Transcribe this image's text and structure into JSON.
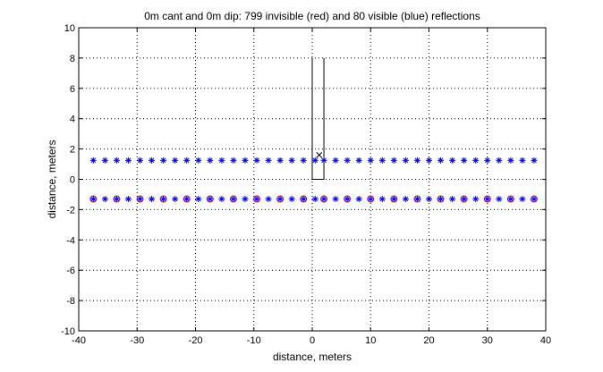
{
  "chart_data": {
    "type": "scatter",
    "title": "0m cant and 0m dip: 799 invisible (red) and 80 visible (blue) reflections",
    "xlabel": "distance, meters",
    "ylabel": "distance, meters",
    "xlim": [
      -40,
      40
    ],
    "ylim": [
      -10,
      10
    ],
    "xticks": [
      -40,
      -30,
      -20,
      -10,
      0,
      10,
      20,
      30,
      40
    ],
    "yticks": [
      -10,
      -8,
      -6,
      -4,
      -2,
      0,
      2,
      4,
      6,
      8,
      10
    ],
    "grid": true,
    "grid_style": "dotted",
    "series": [
      {
        "name": "invisible (red)",
        "marker": "o",
        "color": "#ff0000",
        "x": [
          -37.5,
          -33.5,
          -29.5,
          -25.5,
          -21.5,
          -17.5,
          -13.5,
          -9.5,
          -5.5,
          -1.5,
          2.0,
          6.0,
          10.0,
          14.0,
          18.0,
          22.0,
          26.0,
          30.0,
          34.0,
          38.0
        ],
        "y": [
          -1.3,
          -1.3,
          -1.3,
          -1.3,
          -1.3,
          -1.3,
          -1.3,
          -1.3,
          -1.3,
          -1.3,
          -1.3,
          -1.3,
          -1.3,
          -1.3,
          -1.3,
          -1.3,
          -1.3,
          -1.3,
          -1.3,
          -1.3
        ]
      },
      {
        "name": "visible (blue)",
        "marker": "*",
        "color": "#0000ff",
        "x": [
          -37.5,
          -35.5,
          -33.5,
          -31.5,
          -29.5,
          -27.5,
          -25.5,
          -23.5,
          -21.5,
          -19.5,
          -17.5,
          -15.5,
          -13.5,
          -11.5,
          -9.5,
          -7.5,
          -5.5,
          -3.5,
          -1.5,
          0.5,
          2.0,
          4.0,
          6.0,
          8.0,
          10.0,
          12.0,
          14.0,
          16.0,
          18.0,
          20.0,
          22.0,
          24.0,
          26.0,
          28.0,
          30.0,
          32.0,
          34.0,
          36.0,
          38.0,
          -37.5,
          -35.5,
          -33.5,
          -31.5,
          -29.5,
          -27.5,
          -25.5,
          -23.5,
          -21.5,
          -19.5,
          -17.5,
          -15.5,
          -13.5,
          -11.5,
          -9.5,
          -7.5,
          -5.5,
          -3.5,
          -1.5,
          0.5,
          2.0,
          4.0,
          6.0,
          8.0,
          10.0,
          12.0,
          14.0,
          16.0,
          18.0,
          20.0,
          22.0,
          24.0,
          26.0,
          28.0,
          30.0,
          32.0,
          34.0,
          36.0,
          38.0
        ],
        "y": [
          1.25,
          1.25,
          1.25,
          1.25,
          1.25,
          1.25,
          1.25,
          1.25,
          1.25,
          1.25,
          1.25,
          1.25,
          1.25,
          1.25,
          1.25,
          1.25,
          1.25,
          1.25,
          1.25,
          1.25,
          1.25,
          1.25,
          1.25,
          1.25,
          1.25,
          1.25,
          1.25,
          1.25,
          1.25,
          1.25,
          1.25,
          1.25,
          1.25,
          1.25,
          1.25,
          1.25,
          1.25,
          1.25,
          1.25,
          -1.3,
          -1.3,
          -1.3,
          -1.3,
          -1.3,
          -1.3,
          -1.3,
          -1.3,
          -1.3,
          -1.3,
          -1.3,
          -1.3,
          -1.3,
          -1.3,
          -1.3,
          -1.3,
          -1.3,
          -1.3,
          -1.3,
          -1.3,
          -1.3,
          -1.3,
          -1.3,
          -1.3,
          -1.3,
          -1.3,
          -1.3,
          -1.3,
          -1.3,
          -1.3,
          -1.3,
          -1.3,
          -1.3,
          -1.3,
          -1.3,
          -1.3,
          -1.3,
          -1.3,
          -1.3
        ]
      }
    ],
    "annotations": {
      "outline": {
        "color": "#000000",
        "x": [
          0,
          0,
          2,
          2
        ],
        "y": [
          8,
          0,
          0,
          8
        ]
      },
      "cross_marker": {
        "x": 1.2,
        "y": 1.6,
        "color": "#000000"
      }
    }
  }
}
